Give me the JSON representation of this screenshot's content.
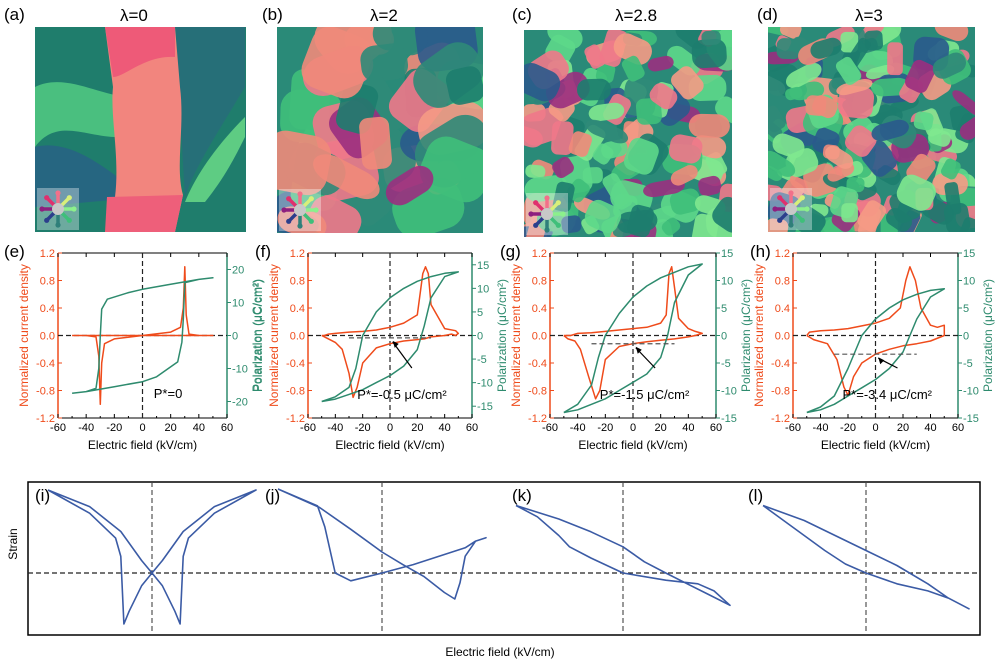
{
  "colors": {
    "current": "#ef4b1b",
    "polarization": "#2e8b6e",
    "strain": "#3b5ba5",
    "dashed": "#222222"
  },
  "maps": [
    {
      "label": "(a)",
      "title": "λ=0",
      "lambda": 0
    },
    {
      "label": "(b)",
      "title": "λ=2",
      "lambda": 2
    },
    {
      "label": "(c)",
      "title": "λ=2.8",
      "lambda": 2.8
    },
    {
      "label": "(d)",
      "title": "λ=3",
      "lambda": 3
    }
  ],
  "compass_legend": {
    "icon": "polarization-direction-wheel-icon",
    "directions": [
      "up",
      "up-right",
      "right",
      "down-right",
      "down",
      "down-left",
      "left",
      "up-left"
    ],
    "colors": [
      "#f2708a",
      "#d8f07a",
      "#8cf08c",
      "#3fbf7a",
      "#2f7f7a",
      "#2c3e8c",
      "#8e1f7f",
      "#e0306e"
    ]
  },
  "chart_data": [
    {
      "type": "line",
      "panel": "(e)",
      "xlabel": "Electric field (kV/cm)",
      "ylabel": "Normalized current density",
      "y2label": "Polarization (μC/cm²)",
      "xlim": [
        -60,
        60
      ],
      "ylim": [
        -1.2,
        1.2
      ],
      "y2lim": [
        -25,
        25
      ],
      "xticks": [
        "-60",
        "-40",
        "-20",
        "0",
        "20",
        "40",
        "60"
      ],
      "yticks": [
        "-1.2",
        "-0.8",
        "-0.4",
        "0.0",
        "0.4",
        "0.8",
        "1.2"
      ],
      "y2ticks": [
        "-20",
        "-10",
        "0",
        "10",
        "20"
      ],
      "annotation": "P*=0",
      "p_star": 0,
      "series": [
        {
          "name": "Normalized current density",
          "axis": "left",
          "x": [
            -50,
            -40,
            -33,
            -31,
            -30,
            -29,
            -27,
            -20,
            0,
            20,
            27,
            29,
            30,
            31,
            33,
            40,
            50,
            40,
            31,
            30,
            29,
            20,
            0,
            -29,
            -30,
            -31,
            -40,
            -50
          ],
          "y": [
            0,
            0,
            -0.02,
            -0.3,
            -1.0,
            -0.4,
            -0.12,
            -0.05,
            0,
            0.05,
            0.12,
            0.4,
            1.0,
            0.3,
            0.02,
            0,
            0,
            0,
            0,
            0,
            0,
            0,
            0,
            0,
            0,
            0,
            0,
            0
          ]
        },
        {
          "name": "Polarization",
          "axis": "right",
          "x": [
            -50,
            -40,
            -33,
            -31,
            -30,
            -29,
            -25,
            -10,
            0,
            20,
            40,
            50,
            40,
            30,
            29,
            28,
            25,
            10,
            0,
            -20,
            -40,
            -50
          ],
          "y": [
            -17.5,
            -17,
            -16,
            -10,
            0,
            8,
            11,
            13,
            14,
            15.5,
            17,
            17.5,
            17,
            16,
            5,
            -2,
            -8,
            -12.5,
            -14,
            -15.5,
            -17,
            -17.5
          ]
        }
      ]
    },
    {
      "type": "line",
      "panel": "(f)",
      "xlabel": "Electric field (kV/cm)",
      "ylabel": "Normalized current density",
      "y2label": "Polarization (μC/cm²)",
      "y2label_left": "Polarization (μC/cm²)",
      "xlim": [
        -60,
        60
      ],
      "ylim": [
        -1.2,
        1.2
      ],
      "y2lim": [
        -17.5,
        17.5
      ],
      "xticks": [
        "-60",
        "-40",
        "-20",
        "0",
        "20",
        "40",
        "60"
      ],
      "yticks": [
        "-1.2",
        "-0.8",
        "-0.4",
        "0.0",
        "0.4",
        "0.8",
        "1.2"
      ],
      "y2ticks": [
        "-15",
        "-10",
        "-5",
        "0",
        "5",
        "10",
        "15"
      ],
      "annotation": "P*=-0.5 μC/cm²",
      "p_star": -0.5,
      "series": [
        {
          "name": "Normalized current density",
          "axis": "left",
          "x": [
            -50,
            -47,
            -40,
            -35,
            -30,
            -27,
            -24,
            -20,
            -10,
            0,
            10,
            20,
            25,
            30,
            40,
            45,
            48,
            50,
            48,
            40,
            30,
            28,
            26,
            24,
            20,
            10,
            0,
            -10,
            -20,
            -30,
            -40,
            -45,
            -48,
            -50
          ],
          "y": [
            0,
            -0.03,
            -0.1,
            -0.2,
            -0.55,
            -0.9,
            -0.75,
            -0.4,
            -0.18,
            -0.12,
            -0.08,
            -0.06,
            -0.05,
            -0.02,
            0.0,
            0.02,
            0.0,
            0.03,
            0.07,
            0.1,
            0.45,
            0.9,
            1.0,
            0.9,
            0.3,
            0.18,
            0.12,
            0.08,
            0.06,
            0.05,
            0.03,
            0.02,
            0.0,
            0.0
          ]
        },
        {
          "name": "Polarization",
          "axis": "right",
          "x": [
            -50,
            -40,
            -30,
            -25,
            -20,
            -10,
            0,
            10,
            20,
            30,
            40,
            50,
            40,
            30,
            25,
            20,
            10,
            0,
            -10,
            -20,
            -30,
            -40,
            -50
          ],
          "y": [
            -14,
            -13,
            -11,
            -7,
            0,
            5,
            8,
            10,
            11.5,
            12.5,
            13.2,
            13.5,
            12.5,
            8,
            2,
            -3,
            -6.5,
            -8.5,
            -10,
            -11.5,
            -12.5,
            -13.5,
            -14
          ]
        }
      ]
    },
    {
      "type": "line",
      "panel": "(g)",
      "xlabel": "Electric field (kV/cm)",
      "ylabel": "Normalized current density",
      "y2label": "Polarization (μC/cm²)",
      "xlim": [
        -60,
        60
      ],
      "ylim": [
        -1.2,
        1.2
      ],
      "y2lim": [
        -15,
        15
      ],
      "xticks": [
        "-60",
        "-40",
        "-20",
        "0",
        "20",
        "40",
        "60"
      ],
      "yticks": [
        "-1.2",
        "-0.8",
        "-0.4",
        "0.0",
        "0.4",
        "0.8",
        "1.2"
      ],
      "y2ticks": [
        "-15",
        "-10",
        "-5",
        "0",
        "5",
        "10",
        "15"
      ],
      "annotation": "P*=-1.5 μC/cm²",
      "p_star": -1.5,
      "series": [
        {
          "name": "Normalized current density",
          "axis": "left",
          "x": [
            -50,
            -47,
            -42,
            -38,
            -32,
            -27,
            -24,
            -20,
            -10,
            0,
            10,
            20,
            30,
            40,
            45,
            50,
            45,
            40,
            33,
            30,
            28,
            26,
            24,
            20,
            10,
            0,
            -10,
            -20,
            -30,
            -40,
            -45,
            -50
          ],
          "y": [
            0,
            -0.05,
            -0.08,
            -0.2,
            -0.6,
            -0.92,
            -0.8,
            -0.35,
            -0.16,
            -0.12,
            -0.09,
            -0.07,
            -0.05,
            -0.02,
            0.0,
            0.03,
            0.06,
            0.1,
            0.25,
            0.7,
            1.0,
            0.9,
            0.3,
            0.18,
            0.12,
            0.1,
            0.08,
            0.06,
            0.04,
            0.03,
            0.0,
            0.0
          ]
        },
        {
          "name": "Polarization",
          "axis": "right",
          "x": [
            -50,
            -40,
            -30,
            -25,
            -20,
            -10,
            0,
            10,
            20,
            30,
            40,
            50,
            40,
            30,
            25,
            20,
            10,
            0,
            -10,
            -20,
            -30,
            -40,
            -50
          ],
          "y": [
            -14,
            -12.5,
            -9,
            -4,
            0,
            4,
            7,
            9,
            10.5,
            11.5,
            12.5,
            13,
            11,
            6,
            0,
            -4,
            -7,
            -8.5,
            -10,
            -11.5,
            -12.5,
            -13.5,
            -14
          ]
        }
      ]
    },
    {
      "type": "line",
      "panel": "(h)",
      "xlabel": "Electric field (kV/cm)",
      "ylabel": "Normalized current density",
      "y2label": "Polarization (μC/cm²)",
      "xlim": [
        -60,
        60
      ],
      "ylim": [
        -1.2,
        1.2
      ],
      "y2lim": [
        -15,
        15
      ],
      "xticks": [
        "-60",
        "-40",
        "-20",
        "0",
        "20",
        "40",
        "60"
      ],
      "yticks": [
        "-1.2",
        "-0.8",
        "-0.4",
        "0.0",
        "0.4",
        "0.8",
        "1.2"
      ],
      "y2ticks": [
        "-15",
        "-10",
        "-5",
        "0",
        "5",
        "10",
        "15"
      ],
      "annotation": "P*=-3.4 μC/cm²",
      "p_star": -3.4,
      "series": [
        {
          "name": "Normalized current density",
          "axis": "left",
          "x": [
            -50,
            -45,
            -35,
            -28,
            -23,
            -20,
            -16,
            -10,
            0,
            10,
            20,
            30,
            40,
            50,
            50,
            45,
            40,
            33,
            29,
            25,
            22,
            18,
            10,
            0,
            -10,
            -20,
            -30,
            -40,
            -48,
            -50
          ],
          "y": [
            0,
            -0.06,
            -0.12,
            -0.35,
            -0.75,
            -0.87,
            -0.6,
            -0.4,
            -0.27,
            -0.2,
            -0.15,
            -0.12,
            -0.08,
            0.0,
            0.15,
            0.12,
            0.15,
            0.4,
            0.8,
            1.0,
            0.8,
            0.4,
            0.25,
            0.18,
            0.14,
            0.1,
            0.08,
            0.07,
            0.05,
            0.0
          ]
        },
        {
          "name": "Polarization",
          "axis": "right",
          "x": [
            -50,
            -40,
            -30,
            -20,
            -10,
            0,
            10,
            20,
            30,
            40,
            50,
            40,
            30,
            25,
            20,
            10,
            0,
            -10,
            -20,
            -30,
            -40,
            -50
          ],
          "y": [
            -14,
            -13,
            -11,
            -6,
            0,
            3,
            5,
            6.5,
            7.5,
            8.2,
            8.5,
            7,
            3,
            0,
            -3,
            -6,
            -8,
            -9.5,
            -11,
            -12.5,
            -13.5,
            -14
          ]
        }
      ]
    },
    {
      "type": "line",
      "panel": "strain",
      "xlabel": "Electric field (kV/cm)",
      "ylabel": "Strain",
      "axis_ticks": "none",
      "subplots": [
        {
          "label": "(i)",
          "x": [
            -1,
            -0.6,
            -0.35,
            -0.3,
            -0.27,
            -0.22,
            -0.1,
            0,
            0.1,
            0.3,
            0.6,
            1,
            0.6,
            0.35,
            0.3,
            0.27,
            0.22,
            0.1,
            0,
            -0.1,
            -0.3,
            -0.6,
            -1
          ],
          "y": [
            1,
            0.72,
            0.42,
            0.2,
            -0.6,
            -0.45,
            -0.15,
            0,
            0.15,
            0.5,
            0.8,
            1,
            0.72,
            0.42,
            0.2,
            -0.6,
            -0.45,
            -0.15,
            0,
            0.15,
            0.5,
            0.8,
            1
          ]
        },
        {
          "label": "(j)",
          "x": [
            -1,
            -0.62,
            -0.55,
            -0.45,
            -0.3,
            0,
            0.3,
            0.6,
            0.8,
            0.9,
            1,
            0.9,
            0.8,
            0.75,
            0.7,
            0.6,
            0.4,
            0.2,
            0,
            -0.3,
            -0.6,
            -1
          ],
          "y": [
            1,
            0.8,
            0.55,
            0,
            -0.12,
            0,
            0.1,
            0.22,
            0.3,
            0.38,
            0.42,
            0.38,
            0.2,
            -0.15,
            -0.4,
            -0.3,
            -0.05,
            0.1,
            0.25,
            0.52,
            0.78,
            1
          ]
        },
        {
          "label": "(k)",
          "x": [
            -1,
            -0.8,
            -0.6,
            -0.5,
            -0.3,
            0,
            0.4,
            0.7,
            0.85,
            1,
            0.8,
            0.6,
            0.4,
            0.2,
            0,
            -0.3,
            -0.6,
            -1
          ],
          "y": [
            0.9,
            0.75,
            0.5,
            0.35,
            0.2,
            0,
            -0.1,
            -0.15,
            -0.25,
            -0.45,
            -0.3,
            -0.15,
            0,
            0.15,
            0.35,
            0.55,
            0.72,
            0.9
          ]
        },
        {
          "label": "(l)",
          "x": [
            -1,
            -0.8,
            -0.6,
            -0.4,
            -0.2,
            0,
            0.3,
            0.6,
            0.8,
            1,
            0.8,
            0.6,
            0.3,
            0,
            -0.3,
            -0.6,
            -1
          ],
          "y": [
            0.9,
            0.7,
            0.5,
            0.3,
            0.12,
            0,
            -0.15,
            -0.25,
            -0.35,
            -0.5,
            -0.35,
            -0.15,
            0.1,
            0.3,
            0.5,
            0.7,
            0.9
          ]
        }
      ]
    }
  ]
}
